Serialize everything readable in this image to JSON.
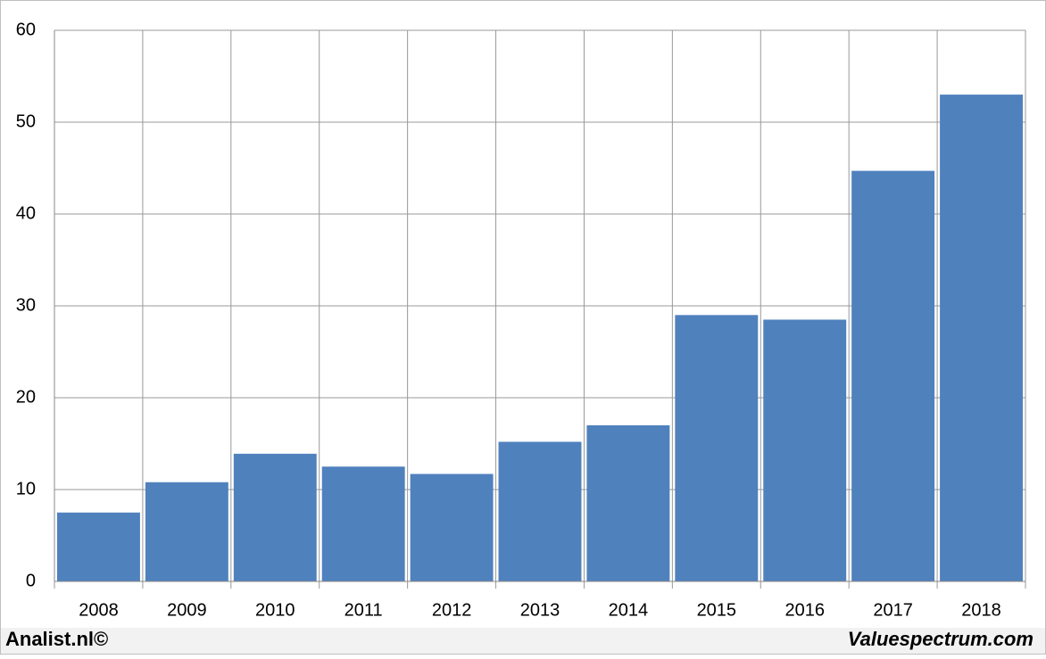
{
  "chart_data": {
    "type": "bar",
    "categories": [
      "2008",
      "2009",
      "2010",
      "2011",
      "2012",
      "2013",
      "2014",
      "2015",
      "2016",
      "2017",
      "2018"
    ],
    "values": [
      7.5,
      10.8,
      13.9,
      12.5,
      11.7,
      15.2,
      17.0,
      29.0,
      28.5,
      44.7,
      53.0
    ],
    "color": "#4f81bd",
    "ylim": [
      0,
      60
    ],
    "yticks": [
      0,
      10,
      20,
      30,
      40,
      50,
      60
    ],
    "grid": true,
    "footer_left": "Analist.nl©",
    "footer_right": "Valuespectrum.com"
  }
}
